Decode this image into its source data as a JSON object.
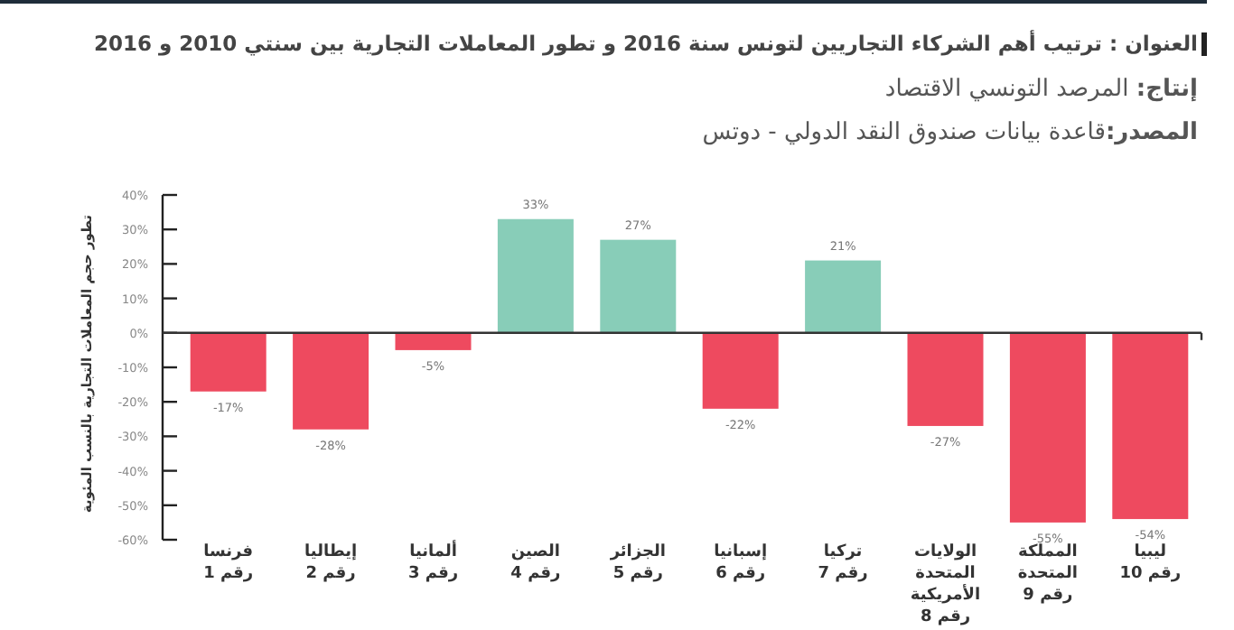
{
  "chart_data": {
    "type": "bar",
    "title": "العنوان : ترتيب أهم الشركاء التجاريين لتونس سنة 2016 و تطور المعاملات التجارية بين سنتي 2010 و 2016",
    "subtitle": "**إنتاج:** المرصد التونسي الاقتصاد",
    "annotations": [
      "**المصدر:**قاعدة بيانات صندوق النقد الدولي - دوتس"
    ],
    "ylabel": "تطور حجم المعاملات التجارية بالنسب المئوية",
    "categories": [
      "فرنسا رقم 1",
      "إيطاليا رقم 2",
      "ألمانيا رقم 3",
      "الصين رقم 4",
      "الجزائر رقم 5",
      "إسبانيا رقم 6",
      "تركيا رقم 7",
      "الولايات المتحدة الأمريكية رقم 8",
      "المملكة المتحدة رقم 9",
      "ليبيا رقم 10"
    ],
    "values": [
      -17,
      -28,
      -5,
      33,
      27,
      -22,
      21,
      -27,
      -55,
      -54
    ],
    "colors": [
      "#ee4a5f",
      "#ee4a5f",
      "#ee4a5f",
      "#88cdb8",
      "#88cdb8",
      "#ee4a5f",
      "#88cdb8",
      "#ee4a5f",
      "#ee4a5f",
      "#ee4a5f"
    ],
    "value_labels": [
      "-17%",
      "-28%",
      "-5%",
      "33%",
      "27%",
      "-22%",
      "21%",
      "-27%",
      "-55%",
      "-54%"
    ],
    "ylim": [
      -60,
      40
    ],
    "yticks": [
      {
        "value": -60,
        "label": "-60%"
      },
      {
        "value": -50,
        "label": "-50%"
      },
      {
        "value": -40,
        "label": "-40%"
      },
      {
        "value": -30,
        "label": "-30%"
      },
      {
        "value": -20,
        "label": "-20%"
      },
      {
        "value": -10,
        "label": "-10%"
      },
      {
        "value": 0,
        "label": "0%"
      },
      {
        "value": 10,
        "label": "10%"
      },
      {
        "value": 20,
        "label": "20%"
      },
      {
        "value": 30,
        "label": "30%"
      },
      {
        "value": 40,
        "label": "40%"
      }
    ],
    "relative": false
  }
}
